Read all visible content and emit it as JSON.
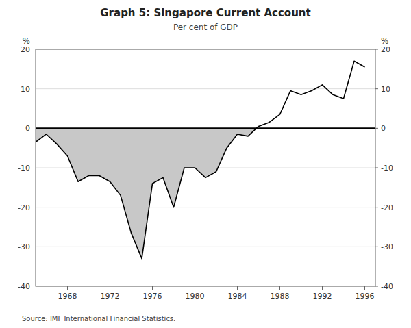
{
  "chart_data": {
    "type": "area",
    "title": "Graph 5: Singapore Current Account",
    "subtitle": "Per cent of GDP",
    "source": "Source: IMF International Financial Statistics.",
    "y_label": "%",
    "y2_label": "%",
    "x": [
      1965,
      1966,
      1967,
      1968,
      1969,
      1970,
      1971,
      1972,
      1973,
      1974,
      1975,
      1976,
      1977,
      1978,
      1979,
      1980,
      1981,
      1982,
      1983,
      1984,
      1985,
      1986,
      1987,
      1988,
      1989,
      1990,
      1991,
      1992,
      1993,
      1994,
      1995,
      1996
    ],
    "values": [
      -3.5,
      -1.5,
      -4.0,
      -7.0,
      -13.5,
      -12.0,
      -12.0,
      -13.5,
      -17.0,
      -26.5,
      -33.0,
      -14.0,
      -12.5,
      -20.0,
      -10.0,
      -10.0,
      -12.5,
      -11.0,
      -5.0,
      -1.5,
      -2.0,
      0.5,
      1.5,
      3.5,
      9.5,
      8.5,
      9.5,
      11.0,
      8.5,
      7.5,
      17.0,
      15.5
    ],
    "color": "#000000",
    "xlim": [
      1965,
      1997
    ],
    "xticks": [
      1968,
      1972,
      1976,
      1980,
      1984,
      1988,
      1992,
      1996
    ],
    "ylim": [
      -40,
      20
    ],
    "yticks": [
      -40,
      -30,
      -20,
      -10,
      0,
      10,
      20
    ],
    "y2lim": [
      -40,
      20
    ],
    "y2ticks": [
      -40,
      -30,
      -20,
      -10,
      0,
      10,
      20
    ],
    "grid": true
  }
}
